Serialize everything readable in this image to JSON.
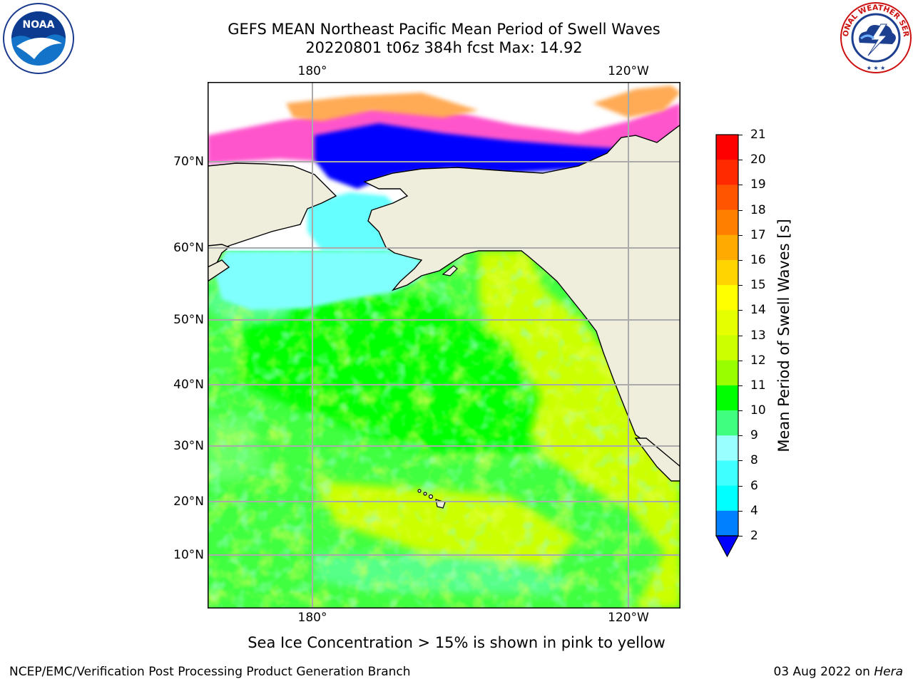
{
  "title_line1": "GEFS MEAN Northeast Pacific Mean Period of Swell Waves",
  "title_line2": "20220801 t06z 384h fcst   Max: 14.92",
  "logos": {
    "left": {
      "text": "NOAA",
      "icon": "noaa-logo-icon"
    },
    "right": {
      "text": "NATIONAL WEATHER SERVICE",
      "icon": "nws-logo-icon"
    }
  },
  "lon_ticks": [
    "180°",
    "120°W"
  ],
  "lat_ticks": [
    "70°N",
    "60°N",
    "50°N",
    "40°N",
    "30°N",
    "20°N",
    "10°N"
  ],
  "colorbar": {
    "label": "Mean Period of Swell Waves [s]",
    "ticks": [
      "21",
      "20",
      "19",
      "18",
      "17",
      "16",
      "15",
      "14",
      "13",
      "12",
      "11",
      "10",
      "9",
      "8",
      "6",
      "4",
      "2"
    ],
    "colors": [
      "#ff0000",
      "#ff2a00",
      "#ff5500",
      "#ff7f00",
      "#ffaa00",
      "#ffd400",
      "#ffff00",
      "#e6ff00",
      "#ccff00",
      "#99ff00",
      "#00ff00",
      "#40ff80",
      "#99ffff",
      "#40ffff",
      "#00ffff",
      "#0080ff",
      "#0000ff"
    ]
  },
  "colors": {
    "land": "#efeedd",
    "ice_pink": "#ff55cc",
    "ice_orange": "#ffaa55",
    "arctic_blue": "#0000ff",
    "cyan": "#80ffff",
    "green": "#00ff00",
    "yellow_green": "#ccff00"
  },
  "footnote": "Sea Ice Concentration > 15% is shown in pink to yellow",
  "credit": "NCEP/EMC/Verification Post Processing Product Generation Branch",
  "footer_date": "03 Aug 2022 on",
  "footer_host": "Hera"
}
